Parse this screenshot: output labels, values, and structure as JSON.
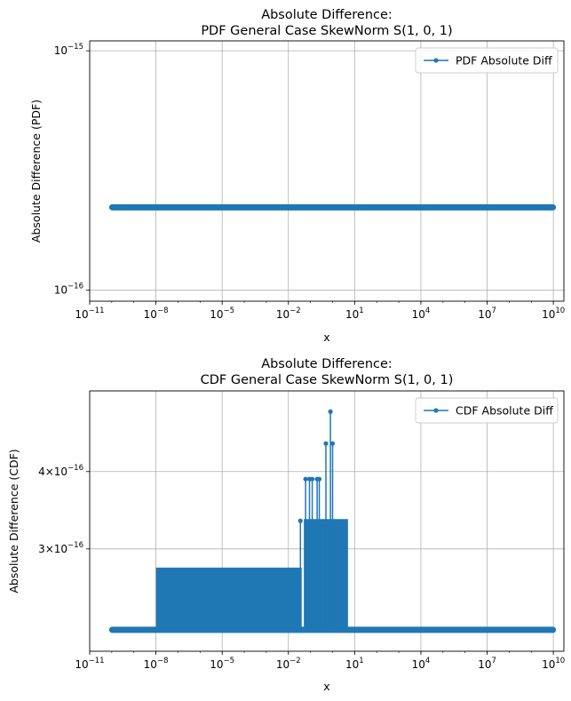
{
  "chart_data": [
    {
      "type": "line",
      "title": "Absolute Difference:",
      "subtitle": "PDF General Case SkewNorm S(1, 0, 1)",
      "xlabel": "x",
      "ylabel": "Absolute Difference (PDF)",
      "xscale": "log",
      "yscale": "log",
      "xlim": [
        1e-11,
        30000000000.0
      ],
      "ylim": [
        9e-17,
        1.1e-15
      ],
      "grid": true,
      "legend_position": "top-right",
      "xticks": [
        {
          "value": 1e-11,
          "base": "10",
          "exp": "−11"
        },
        {
          "value": 1e-08,
          "base": "10",
          "exp": "−8"
        },
        {
          "value": 1e-05,
          "base": "10",
          "exp": "−5"
        },
        {
          "value": 0.01,
          "base": "10",
          "exp": "−2"
        },
        {
          "value": 10.0,
          "base": "10",
          "exp": "1"
        },
        {
          "value": 10000.0,
          "base": "10",
          "exp": "4"
        },
        {
          "value": 10000000.0,
          "base": "10",
          "exp": "7"
        },
        {
          "value": 10000000000.0,
          "base": "10",
          "exp": "10"
        }
      ],
      "yticks": [
        {
          "value": 1e-16,
          "base": "10",
          "exp": "−16"
        },
        {
          "value": 1e-15,
          "base": "10",
          "exp": "−15"
        }
      ],
      "series": [
        {
          "name": "PDF Absolute Diff",
          "color": "#1f77b4",
          "x_range": [
            1e-10,
            10000000000.0
          ],
          "y_constant": 2.22e-16
        }
      ]
    },
    {
      "type": "line",
      "title": "Absolute Difference:",
      "subtitle": "CDF General Case SkewNorm S(1, 0, 1)",
      "xlabel": "x",
      "ylabel": "Absolute Difference (CDF)",
      "xscale": "log",
      "yscale": "log",
      "xlim": [
        1e-11,
        30000000000.0
      ],
      "ylim": [
        2.05e-16,
        5.4e-16
      ],
      "grid": true,
      "legend_position": "top-right",
      "xticks": [
        {
          "value": 1e-11,
          "base": "10",
          "exp": "−11"
        },
        {
          "value": 1e-08,
          "base": "10",
          "exp": "−8"
        },
        {
          "value": 1e-05,
          "base": "10",
          "exp": "−5"
        },
        {
          "value": 0.01,
          "base": "10",
          "exp": "−2"
        },
        {
          "value": 10.0,
          "base": "10",
          "exp": "1"
        },
        {
          "value": 10000.0,
          "base": "10",
          "exp": "4"
        },
        {
          "value": 10000000.0,
          "base": "10",
          "exp": "7"
        },
        {
          "value": 10000000000.0,
          "base": "10",
          "exp": "10"
        }
      ],
      "yticks": [
        {
          "value": 3e-16,
          "prefix": "3×10",
          "exp": "−16"
        },
        {
          "value": 4e-16,
          "prefix": "4×10",
          "exp": "−16"
        }
      ],
      "series": [
        {
          "name": "CDF Absolute Diff",
          "color": "#1f77b4",
          "baseline": 2.22e-16,
          "x_range": [
            1e-10,
            10000000000.0
          ],
          "band1": {
            "x_range": [
              1e-08,
              0.04
            ],
            "y": 2.78e-16
          },
          "band2": {
            "x_range": [
              0.05,
              5
            ],
            "y": 3.33e-16
          },
          "spikes": [
            {
              "x": 0.035,
              "y": 3.33e-16
            },
            {
              "x": 0.06,
              "y": 3.89e-16
            },
            {
              "x": 0.09,
              "y": 3.89e-16
            },
            {
              "x": 0.12,
              "y": 3.89e-16
            },
            {
              "x": 0.2,
              "y": 3.89e-16
            },
            {
              "x": 0.25,
              "y": 3.89e-16
            },
            {
              "x": 0.5,
              "y": 4.44e-16
            },
            {
              "x": 0.8,
              "y": 5e-16
            },
            {
              "x": 1.0,
              "y": 4.44e-16
            }
          ]
        }
      ]
    }
  ]
}
